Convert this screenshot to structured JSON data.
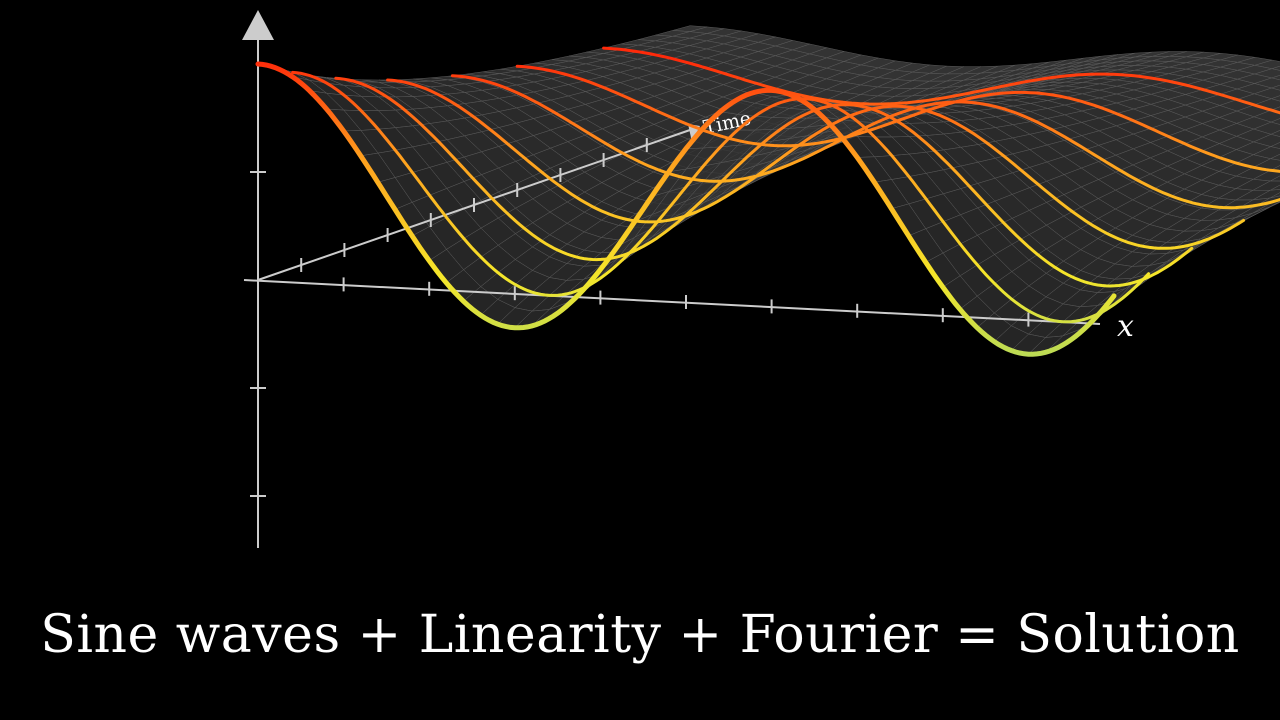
{
  "caption": "Sine waves + Linearity + Fourier = Solution",
  "axes": {
    "x_label": "x",
    "time_label": "Time"
  },
  "colors": {
    "background": "#000000",
    "axis": "#cccccc",
    "surface": "#3a3a3a",
    "mesh": "#5a5a5a",
    "curve_high": "#ff2a0a",
    "curve_mid": "#f5e62a",
    "curve_low": "#5ac6d2"
  }
}
